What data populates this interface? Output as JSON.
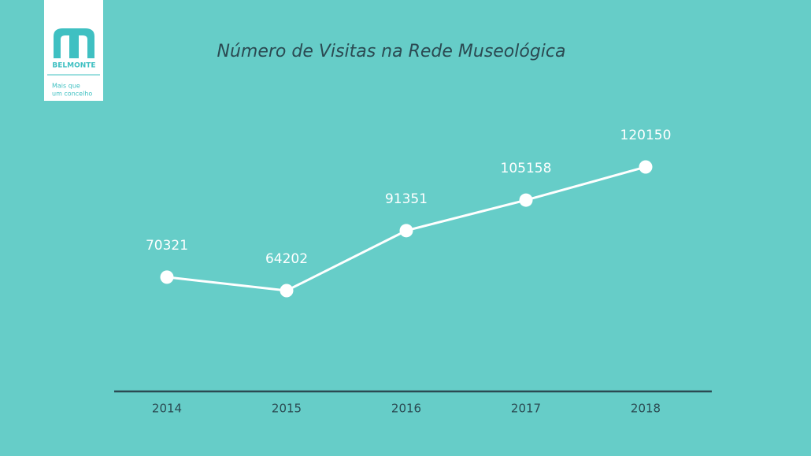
{
  "logo": {
    "brand": "BELMONTE",
    "tagline": [
      "Mais que",
      "um concelho"
    ]
  },
  "chart_data": {
    "type": "line",
    "title": "Número de Visitas na Rede Museológica",
    "categories": [
      "2014",
      "2015",
      "2016",
      "2017",
      "2018"
    ],
    "values": [
      70321,
      64202,
      91351,
      105158,
      120150
    ],
    "color": "#ffffff",
    "ylim": [
      18600,
      145800
    ]
  }
}
